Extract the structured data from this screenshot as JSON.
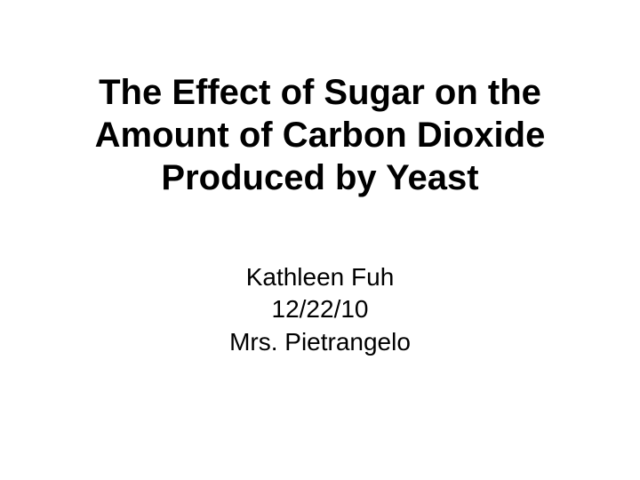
{
  "slide": {
    "title": {
      "line1": "The Effect of Sugar on the",
      "line2": "Amount of Carbon Dioxide",
      "line3": "Produced by Yeast",
      "fontsize": 40,
      "fontweight": "bold",
      "color": "#000000"
    },
    "subtitle": {
      "author": "Kathleen Fuh",
      "date": "12/22/10",
      "teacher": "Mrs. Pietrangelo",
      "fontsize": 28,
      "fontweight": "normal",
      "color": "#000000"
    },
    "background_color": "#ffffff"
  }
}
